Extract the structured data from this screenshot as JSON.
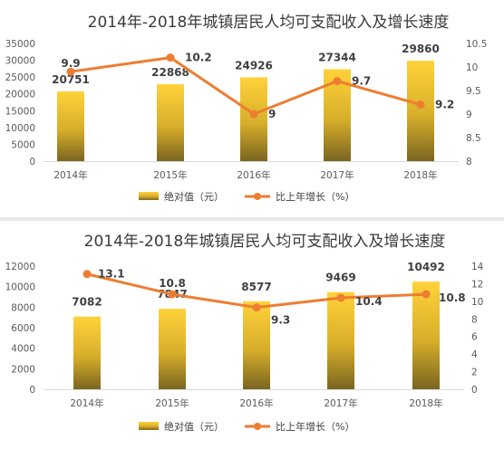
{
  "chart_data": [
    {
      "type": "bar",
      "title": "2014年-2018年城镇居民人均可支配收入及增长速度",
      "categories": [
        "2014年",
        "2015年",
        "2016年",
        "2017年",
        "2018年"
      ],
      "series": [
        {
          "name": "绝对值（元）",
          "type": "bar",
          "axis": "left",
          "values": [
            20751,
            22868,
            24926,
            27344,
            29860
          ],
          "labels": [
            "20751",
            "22868",
            "24926",
            "27344",
            "29860"
          ]
        },
        {
          "name": "比上年增长（%）",
          "type": "line",
          "axis": "right",
          "values": [
            9.9,
            10.2,
            9,
            9.7,
            9.2
          ],
          "labels": [
            "9.9",
            "10.2",
            "9",
            "9.7",
            "9.2"
          ]
        }
      ],
      "y_left": {
        "min": 0,
        "max": 35000,
        "ticks": [
          0,
          5000,
          10000,
          15000,
          20000,
          25000,
          30000,
          35000
        ],
        "tick_labels": [
          "0",
          "5000",
          "10000",
          "15000",
          "20000",
          "25000",
          "30000",
          "35000"
        ]
      },
      "y_right": {
        "min": 8,
        "max": 10.5,
        "ticks": [
          8,
          8.5,
          9,
          9.5,
          10,
          10.5
        ],
        "tick_labels": [
          "8",
          "8.5",
          "9",
          "9.5",
          "10",
          "10.5"
        ]
      },
      "legend_position": "bottom",
      "grid": false,
      "colors": {
        "bar_top": "#ffd23a",
        "bar_bottom": "#7a6520",
        "line": "#ed7d31",
        "label": "#404040"
      }
    },
    {
      "type": "bar",
      "title": "2014年-2018年城镇居民人均可支配收入及增长速度",
      "categories": [
        "2014年",
        "2015年",
        "2016年",
        "2017年",
        "2018年"
      ],
      "series": [
        {
          "name": "绝对值（元）",
          "type": "bar",
          "axis": "left",
          "values": [
            7082,
            7847,
            8577,
            9469,
            10492
          ],
          "labels": [
            "7082",
            "7847",
            "8577",
            "9469",
            "10492"
          ]
        },
        {
          "name": "比上年增长（%）",
          "type": "line",
          "axis": "right",
          "values": [
            13.1,
            10.8,
            9.3,
            10.4,
            10.8
          ],
          "labels": [
            "13.1",
            "10.8",
            "9.3",
            "10.4",
            "10.8"
          ]
        }
      ],
      "y_left": {
        "min": 0,
        "max": 12000,
        "ticks": [
          0,
          2000,
          4000,
          6000,
          8000,
          10000,
          12000
        ],
        "tick_labels": [
          "0",
          "2000",
          "4000",
          "6000",
          "8000",
          "10000",
          "12000"
        ]
      },
      "y_right": {
        "min": 0,
        "max": 14,
        "ticks": [
          0,
          2,
          4,
          6,
          8,
          10,
          12,
          14
        ],
        "tick_labels": [
          "0",
          "2",
          "4",
          "6",
          "8",
          "10",
          "12",
          "14"
        ]
      },
      "legend_position": "bottom",
      "grid": false,
      "colors": {
        "bar_top": "#ffd23a",
        "bar_bottom": "#7a6520",
        "line": "#ed7d31",
        "label": "#404040"
      }
    }
  ]
}
